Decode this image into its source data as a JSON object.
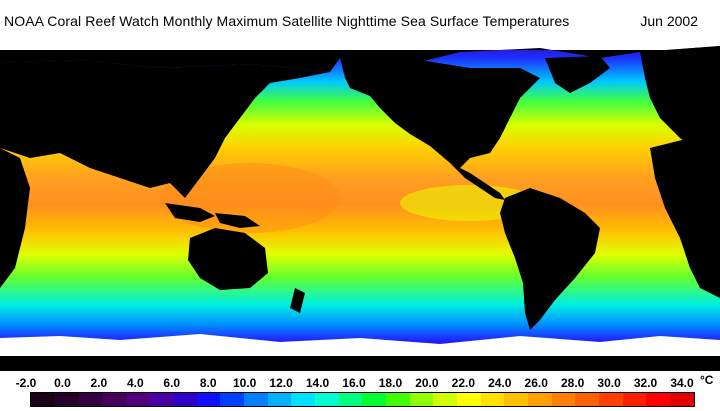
{
  "header": {
    "title": "NOAA Coral Reef Watch Monthly Maximum Satellite Nighttime Sea Surface Temperatures",
    "period": "Jun 2002"
  },
  "legend": {
    "ticks": [
      "-2.0",
      "0.0",
      "2.0",
      "4.0",
      "6.0",
      "8.0",
      "10.0",
      "12.0",
      "14.0",
      "16.0",
      "18.0",
      "20.0",
      "22.0",
      "24.0",
      "26.0",
      "28.0",
      "30.0",
      "32.0",
      "34.0"
    ],
    "unit": "°C",
    "min": -2.0,
    "max": 34.0,
    "colors": [
      "#1a0014",
      "#250028",
      "#350040",
      "#45005a",
      "#500078",
      "#4a00a0",
      "#3000c8",
      "#1010ff",
      "#0040ff",
      "#0080ff",
      "#00b0ff",
      "#00e0ff",
      "#00ffd0",
      "#00ff80",
      "#00ff30",
      "#40ff00",
      "#90ff00",
      "#d0ff00",
      "#ffff00",
      "#ffe000",
      "#ffc000",
      "#ffa000",
      "#ff8000",
      "#ff6000",
      "#ff4000",
      "#ff2000",
      "#ff0000",
      "#e00000"
    ]
  },
  "map": {
    "land_color": "#000000",
    "ice_color": "#ffffff"
  }
}
